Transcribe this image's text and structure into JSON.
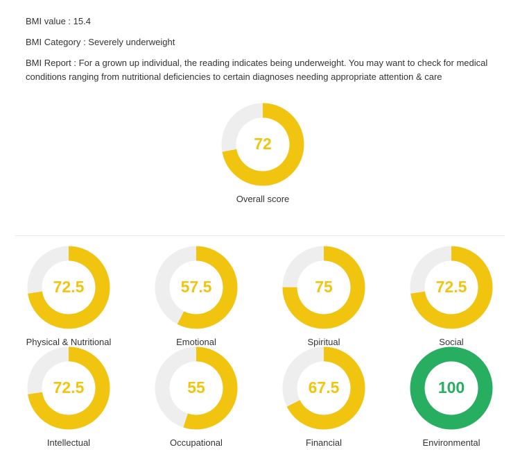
{
  "bmi": {
    "value_text": "BMI value : 15.4",
    "category_text": "BMI Category : Severely underweight",
    "report_text": "BMI Report : For a grown up individual, the reading indicates being underweight. You may want to check for medical conditions ranging from nutritional deficiencies to certain diagnoses needing appropriate attention & care"
  },
  "colors": {
    "track": "#eeeeee",
    "yellow": "#f1c40f",
    "green": "#27ae60"
  },
  "chart_data": [
    {
      "type": "donut",
      "name": "Overall score",
      "value": 72,
      "max": 100,
      "value_label": "72",
      "color": "#f1c40f"
    },
    {
      "type": "donut",
      "name": "Physical & Nutritional",
      "value": 72.5,
      "max": 100,
      "value_label": "72.5",
      "color": "#f1c40f"
    },
    {
      "type": "donut",
      "name": "Emotional",
      "value": 57.5,
      "max": 100,
      "value_label": "57.5",
      "color": "#f1c40f"
    },
    {
      "type": "donut",
      "name": "Spiritual",
      "value": 75,
      "max": 100,
      "value_label": "75",
      "color": "#f1c40f"
    },
    {
      "type": "donut",
      "name": "Social",
      "value": 72.5,
      "max": 100,
      "value_label": "72.5",
      "color": "#f1c40f"
    },
    {
      "type": "donut",
      "name": "Intellectual",
      "value": 72.5,
      "max": 100,
      "value_label": "72.5",
      "color": "#f1c40f"
    },
    {
      "type": "donut",
      "name": "Occupational",
      "value": 55,
      "max": 100,
      "value_label": "55",
      "color": "#f1c40f"
    },
    {
      "type": "donut",
      "name": "Financial",
      "value": 67.5,
      "max": 100,
      "value_label": "67.5",
      "color": "#f1c40f"
    },
    {
      "type": "donut",
      "name": "Environmental",
      "value": 100,
      "max": 100,
      "value_label": "100",
      "color": "#27ae60"
    }
  ]
}
